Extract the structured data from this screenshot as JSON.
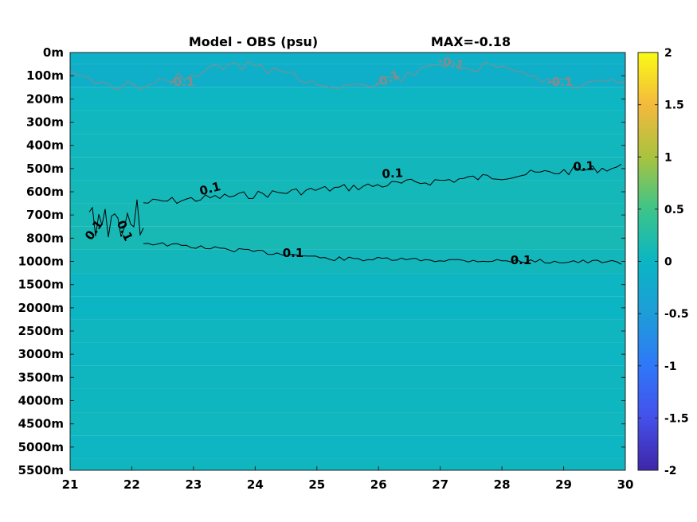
{
  "chart_data": {
    "type": "heatmap",
    "title": "Model - OBS (psu)",
    "subtitle": "MAX=-0.18",
    "x_ticks": [
      "21",
      "22",
      "23",
      "24",
      "25",
      "26",
      "27",
      "28",
      "29",
      "30"
    ],
    "xlim": [
      21,
      30
    ],
    "y_ticks": [
      "0m",
      "100m",
      "200m",
      "300m",
      "400m",
      "500m",
      "600m",
      "700m",
      "800m",
      "1000m",
      "1500m",
      "2000m",
      "2500m",
      "3000m",
      "3500m",
      "4000m",
      "4500m",
      "5000m",
      "5500m"
    ],
    "colorbar": {
      "range": [
        -2,
        2
      ],
      "ticks": [
        "2",
        "1.5",
        "1",
        "0.5",
        "0",
        "-0.5",
        "-1",
        "-1.5",
        "-2"
      ],
      "colormap": "parula"
    },
    "depth_bands": [
      {
        "depth": "0m",
        "value": -0.08
      },
      {
        "depth": "100m",
        "value": -0.12
      },
      {
        "depth": "200m",
        "value": 0.02
      },
      {
        "depth": "300m",
        "value": 0.05
      },
      {
        "depth": "400m",
        "value": 0.06
      },
      {
        "depth": "500m",
        "value": 0.08
      },
      {
        "depth": "600m",
        "value": 0.1
      },
      {
        "depth": "700m",
        "value": 0.12
      },
      {
        "depth": "800m",
        "value": 0.13
      },
      {
        "depth": "1000m",
        "value": 0.08
      },
      {
        "depth": "1500m",
        "value": 0.02
      },
      {
        "depth": "2000m",
        "value": 0.01
      },
      {
        "depth": "2500m",
        "value": 0.04
      },
      {
        "depth": "3000m",
        "value": 0.02
      },
      {
        "depth": "3500m",
        "value": 0.04
      },
      {
        "depth": "4000m",
        "value": 0.03
      },
      {
        "depth": "4500m",
        "value": 0.05
      },
      {
        "depth": "5000m",
        "value": 0.02
      },
      {
        "depth": "5500m",
        "value": 0.04
      }
    ],
    "contours": [
      {
        "level": "-0.1",
        "color": "#8a8a8a",
        "labels": [
          "-0.1",
          "-0.1",
          "-0.1",
          "-0.1"
        ]
      },
      {
        "level": "0.1",
        "color": "#000000",
        "labels": [
          "0.1",
          "0.1",
          "0.1",
          "0.1",
          "0.1",
          "0.1",
          "0.1"
        ]
      }
    ]
  }
}
